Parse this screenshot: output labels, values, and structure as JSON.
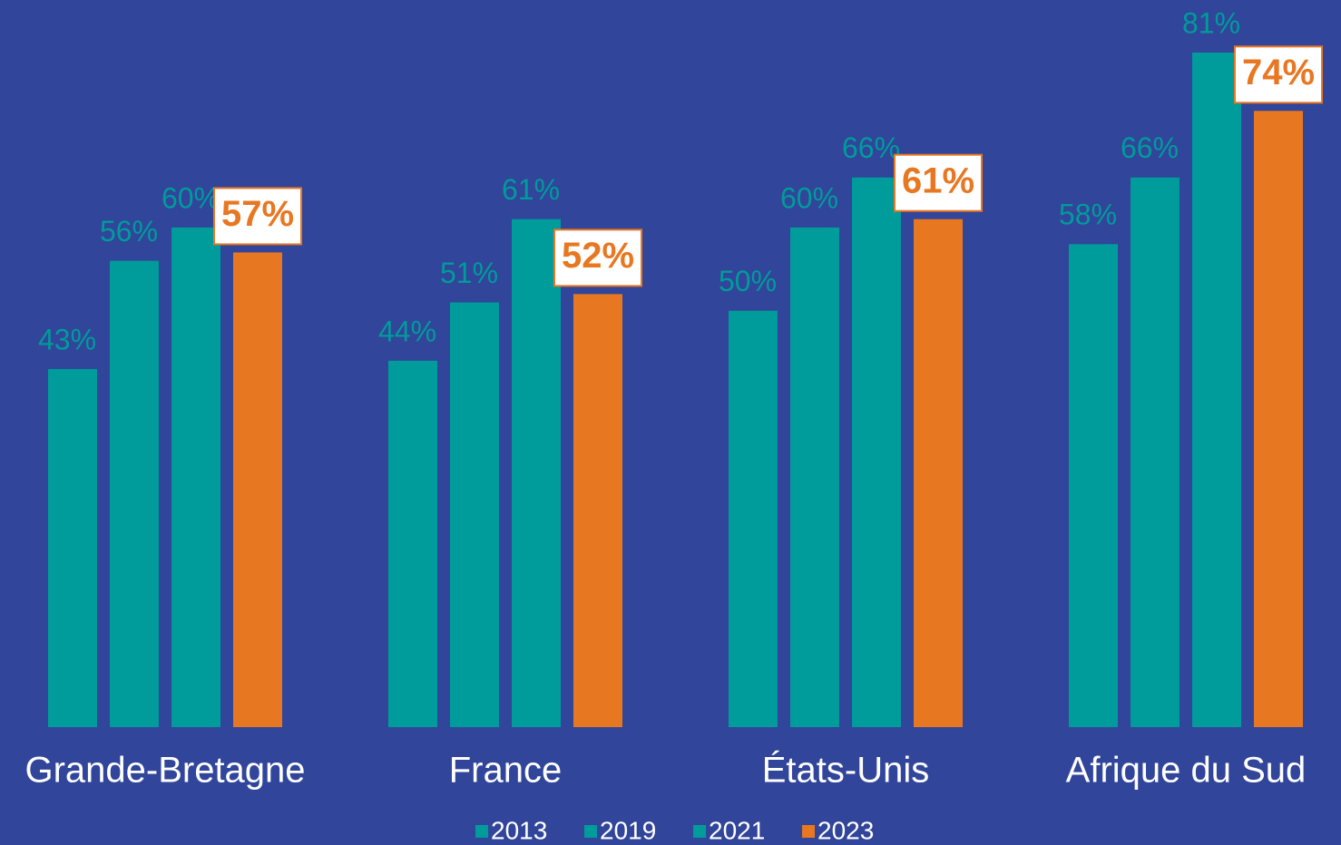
{
  "chart_data": {
    "type": "bar",
    "categories": [
      "Grande-Bretagne",
      "France",
      "États-Unis",
      "Afrique du Sud"
    ],
    "series": [
      {
        "name": "2013",
        "color": "#009b9b",
        "values": [
          43,
          44,
          50,
          58
        ],
        "value_labels": [
          "43%",
          "44%",
          "50%",
          "58%"
        ]
      },
      {
        "name": "2019",
        "color": "#009b9b",
        "values": [
          56,
          51,
          60,
          66
        ],
        "value_labels": [
          "56%",
          "51%",
          "60%",
          "66%"
        ]
      },
      {
        "name": "2021",
        "color": "#009b9b",
        "values": [
          60,
          61,
          66,
          81
        ],
        "value_labels": [
          "60%",
          "61%",
          "66%",
          "81%"
        ]
      },
      {
        "name": "2023",
        "color": "#e87722",
        "values": [
          57,
          52,
          61,
          74
        ],
        "value_labels": [
          "57%",
          "52%",
          "61%",
          "74%"
        ],
        "boxed_labels": true
      }
    ]
  }
}
